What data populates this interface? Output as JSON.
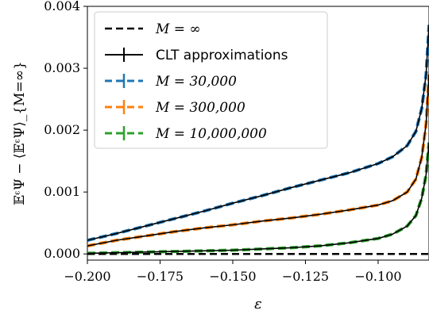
{
  "chart_data": {
    "type": "line",
    "xlabel": "ε",
    "ylabel": "𝔼ᵋΨ − ⟨𝔼ᵋΨ⟩_{M=∞}",
    "xlim": [
      -0.2,
      -0.0825
    ],
    "ylim": [
      -0.0001,
      0.004
    ],
    "x_ticks": [
      -0.2,
      -0.175,
      -0.15,
      -0.125,
      -0.1
    ],
    "x_tick_labels": [
      "−0.200",
      "−0.175",
      "−0.150",
      "−0.125",
      "−0.100"
    ],
    "y_ticks": [
      0.0,
      0.001,
      0.002,
      0.003,
      0.004
    ],
    "y_tick_labels": [
      "0.000",
      "0.001",
      "0.002",
      "0.003",
      "0.004"
    ],
    "grid": false,
    "legend_position": "top-left",
    "legend": [
      {
        "label": "M = ∞",
        "style": "dashed",
        "color": "#000000"
      },
      {
        "label": "CLT approximations",
        "style": "solid-errorbar",
        "color": "#000000"
      },
      {
        "label": "M = 30,000",
        "style": "dashed-errorbar",
        "color": "#1f77b4"
      },
      {
        "label": "M = 300,000",
        "style": "dashed-errorbar",
        "color": "#ff7f0e"
      },
      {
        "label": "M = 10,000,000",
        "style": "dashed-errorbar",
        "color": "#2ca02c"
      }
    ],
    "series": [
      {
        "name": "M = ∞",
        "color": "#000000",
        "x": [
          -0.2,
          -0.0825
        ],
        "y": [
          0.0,
          0.0
        ]
      },
      {
        "name": "M = 30,000",
        "color": "#1f77b4",
        "x": [
          -0.2,
          -0.19,
          -0.18,
          -0.17,
          -0.16,
          -0.15,
          -0.14,
          -0.13,
          -0.12,
          -0.11,
          -0.1,
          -0.095,
          -0.09,
          -0.087,
          -0.085,
          -0.0835,
          -0.0825
        ],
        "y": [
          0.00022,
          0.00033,
          0.00045,
          0.00057,
          0.00069,
          0.00082,
          0.00094,
          0.00107,
          0.00119,
          0.00131,
          0.00146,
          0.00157,
          0.00175,
          0.00198,
          0.00235,
          0.0029,
          0.0037
        ]
      },
      {
        "name": "M = 300,000",
        "color": "#ff7f0e",
        "x": [
          -0.2,
          -0.19,
          -0.18,
          -0.17,
          -0.16,
          -0.15,
          -0.14,
          -0.13,
          -0.12,
          -0.11,
          -0.1,
          -0.095,
          -0.09,
          -0.087,
          -0.085,
          -0.0835,
          -0.0825
        ],
        "y": [
          0.00013,
          0.00022,
          0.00029,
          0.00036,
          0.00042,
          0.00047,
          0.00053,
          0.00058,
          0.00064,
          0.00071,
          0.00079,
          0.00086,
          0.001,
          0.00121,
          0.00156,
          0.0021,
          0.0029
        ]
      },
      {
        "name": "M = 10,000,000",
        "color": "#2ca02c",
        "x": [
          -0.2,
          -0.19,
          -0.18,
          -0.17,
          -0.16,
          -0.15,
          -0.14,
          -0.13,
          -0.12,
          -0.11,
          -0.1,
          -0.095,
          -0.09,
          -0.087,
          -0.085,
          -0.0835,
          -0.0825
        ],
        "y": [
          1e-05,
          2e-05,
          3e-05,
          4e-05,
          5e-05,
          6e-05,
          8e-05,
          0.0001,
          0.00013,
          0.00018,
          0.00025,
          0.00032,
          0.00045,
          0.00062,
          0.0009,
          0.00128,
          0.0018
        ]
      }
    ]
  }
}
